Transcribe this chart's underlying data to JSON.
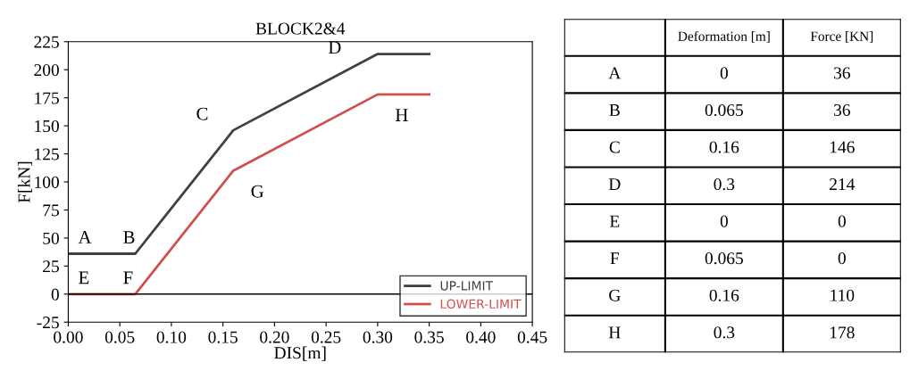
{
  "chart_data": [
    {
      "type": "line",
      "title": "BLOCK2&4",
      "xlabel": "DIS[m]",
      "ylabel": "F[kN]",
      "series": [
        {
          "name": "UP-LIMIT",
          "color": "#404040",
          "x": [
            0,
            0.065,
            0.16,
            0.3,
            0.35
          ],
          "values": [
            36,
            36,
            146,
            214,
            214
          ]
        },
        {
          "name": "LOWER-LIMIT",
          "color": "#d0504d",
          "x": [
            0,
            0.065,
            0.16,
            0.3,
            0.35
          ],
          "values": [
            0,
            0,
            110,
            178,
            178
          ]
        }
      ],
      "xlim": [
        0,
        0.45
      ],
      "xticks": [
        {
          "value": 0,
          "label": "0.00"
        },
        0.05,
        {
          "value": 0.1,
          "label": "0.10"
        },
        0.15,
        {
          "value": 0.2,
          "label": "0.20"
        },
        0.25,
        {
          "value": 0.3,
          "label": "0.30"
        },
        0.35,
        {
          "value": 0.4,
          "label": "0.40"
        },
        0.45
      ],
      "ylim": [
        -25,
        225
      ],
      "yticks": [
        -25,
        0,
        25,
        50,
        75,
        100,
        125,
        150,
        175,
        200,
        225
      ],
      "ref_lines": [
        {
          "axis": "y",
          "value": 0,
          "color": "#000000"
        }
      ],
      "annotations": [
        {
          "text": "A",
          "x": 0,
          "y": 36
        },
        {
          "text": "B",
          "x": 0.065,
          "y": 36
        },
        {
          "text": "C",
          "x": 0.16,
          "y": 146
        },
        {
          "text": "D",
          "x": 0.3,
          "y": 214
        },
        {
          "text": "E",
          "x": 0,
          "y": 0
        },
        {
          "text": "F",
          "x": 0.065,
          "y": 0
        },
        {
          "text": "G",
          "x": 0.16,
          "y": 110
        },
        {
          "text": "H",
          "x": 0.3,
          "y": 178
        }
      ],
      "legend": "bottom right",
      "grid": false,
      "marker": "none",
      "line_style": "solid"
    },
    {
      "type": "other",
      "categories": [
        "A",
        "B",
        "C",
        "D",
        "E",
        "F",
        "G",
        "H"
      ],
      "series": [
        {
          "name": "Deformation [m]",
          "values": [
            0,
            0.065,
            0.16,
            0.3,
            0,
            0.065,
            0.16,
            0.3
          ]
        },
        {
          "name": "Force [KN]",
          "values": [
            36,
            36,
            146,
            214,
            0,
            0,
            110,
            178
          ]
        }
      ],
      "data_labels": true
    }
  ]
}
